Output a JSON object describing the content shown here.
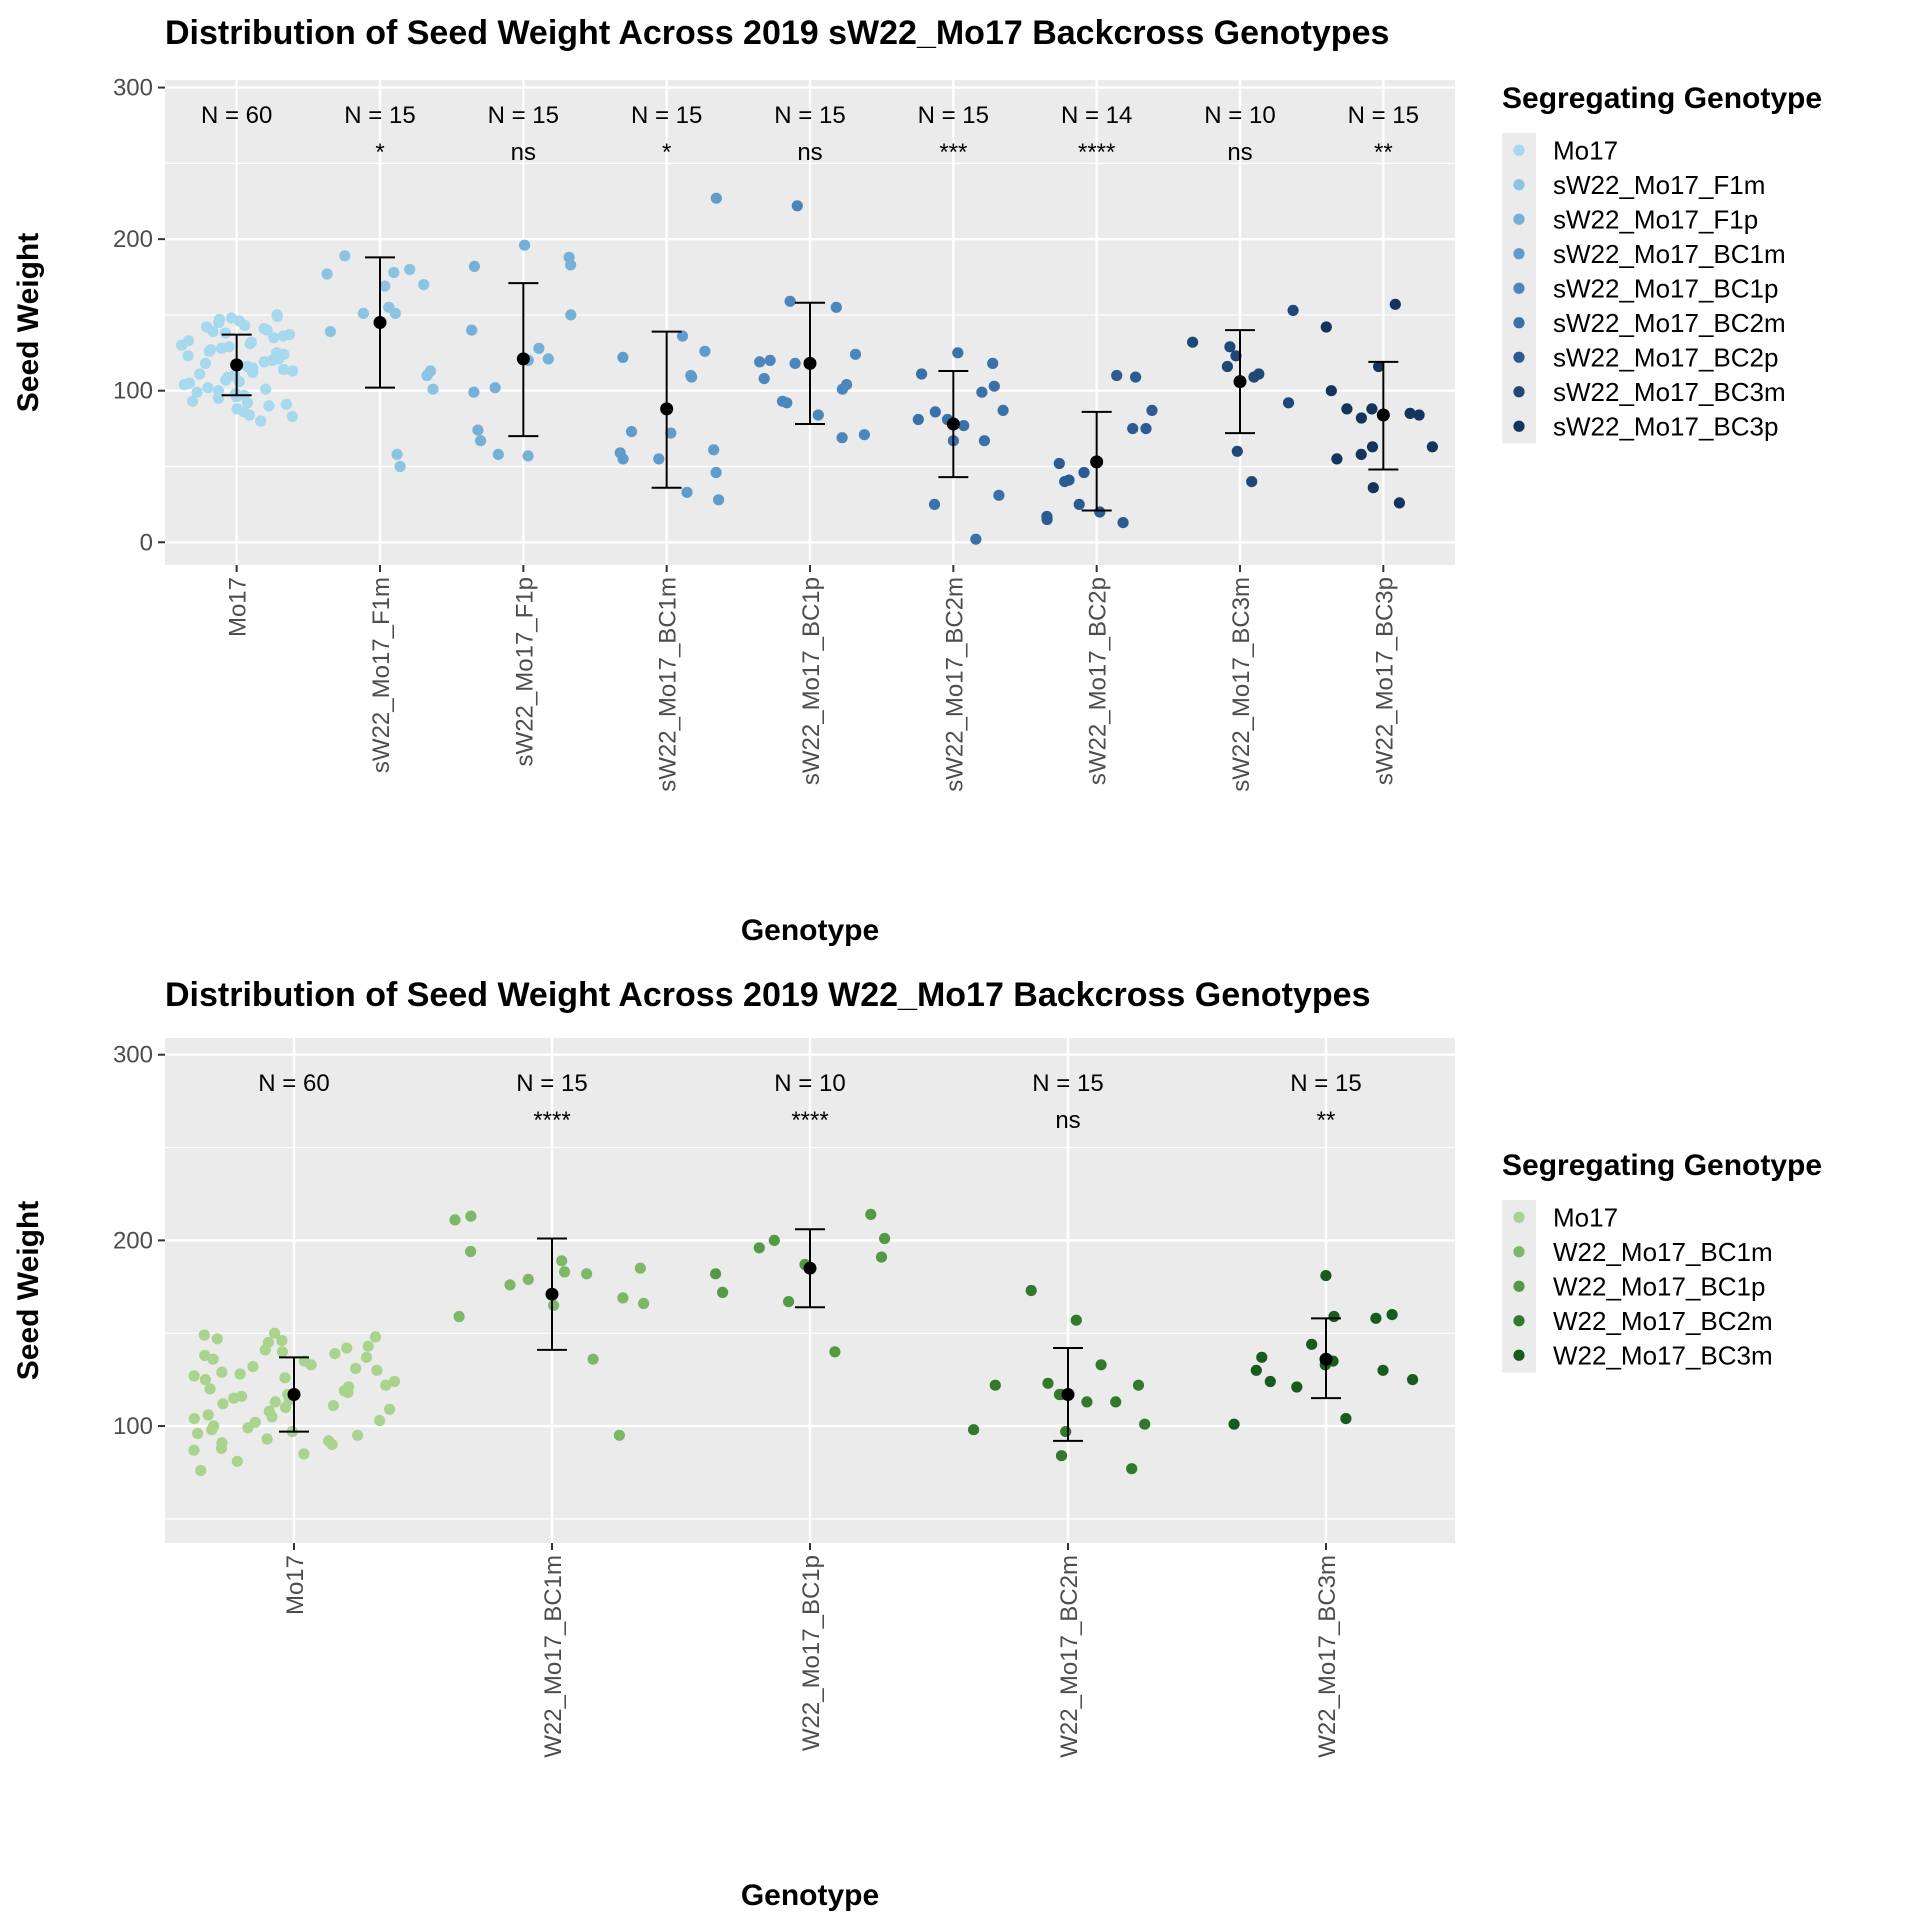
{
  "chart_data": [
    {
      "type": "scatter",
      "title": "Distribution of Seed Weight Across 2019 sW22_Mo17 Backcross Genotypes",
      "xlabel": "Genotype",
      "ylabel": "Seed Weight",
      "ylim": [
        -15,
        305
      ],
      "yticks": [
        0,
        100,
        200,
        300
      ],
      "grid": true,
      "legend_title": "Segregating Genotype",
      "legend_position": "right",
      "categories": [
        "Mo17",
        "sW22_Mo17_F1m",
        "sW22_Mo17_F1p",
        "sW22_Mo17_BC1m",
        "sW22_Mo17_BC1p",
        "sW22_Mo17_BC2m",
        "sW22_Mo17_BC2p",
        "sW22_Mo17_BC3m",
        "sW22_Mo17_BC3p"
      ],
      "colors": [
        "#a6d8ee",
        "#8bc4e3",
        "#75b0d8",
        "#5f9ccb",
        "#4b87bc",
        "#3a71a8",
        "#2b5c91",
        "#1e4878",
        "#13355d"
      ],
      "n_labels": [
        "N = 60",
        "N = 15",
        "N = 15",
        "N = 15",
        "N = 15",
        "N = 15",
        "N = 14",
        "N = 10",
        "N = 15"
      ],
      "significance": [
        "",
        "*",
        "ns",
        "*",
        "ns",
        "***",
        "****",
        "ns",
        "**"
      ],
      "means": [
        117,
        145,
        121,
        88,
        118,
        78,
        53,
        106,
        84
      ],
      "error_low": [
        97,
        102,
        70,
        36,
        78,
        43,
        21,
        72,
        48
      ],
      "error_high": [
        137,
        188,
        171,
        139,
        158,
        113,
        86,
        140,
        119
      ],
      "points": [
        [
          119,
          97,
          148,
          127,
          135,
          101,
          88,
          146,
          106,
          130,
          116,
          84,
          138,
          125,
          95,
          109,
          142,
          113,
          80,
          121,
          150,
          104,
          132,
          91,
          118,
          140,
          99,
          124,
          111,
          145,
          86,
          128,
          107,
          143,
          93,
          115,
          137,
          102,
          126,
          90,
          149,
          112,
          133,
          96,
          120,
          141,
          105,
          129,
          83,
          136,
          110,
          147,
          98,
          123,
          114,
          139,
          100,
          131,
          92,
          117
        ],
        [
          177,
          151,
          170,
          189,
          110,
          58,
          180,
          139,
          50,
          113,
          155,
          169,
          151,
          178,
          101
        ],
        [
          196,
          183,
          121,
          74,
          58,
          188,
          128,
          150,
          182,
          67,
          99,
          140,
          102,
          57,
          120
        ],
        [
          227,
          109,
          72,
          55,
          126,
          33,
          59,
          28,
          46,
          136,
          122,
          73,
          55,
          110,
          61
        ],
        [
          222,
          155,
          92,
          119,
          104,
          71,
          84,
          159,
          101,
          118,
          69,
          108,
          124,
          93,
          120
        ],
        [
          118,
          81,
          25,
          87,
          111,
          2,
          77,
          67,
          31,
          103,
          125,
          99,
          86,
          67,
          81
        ],
        [
          110,
          109,
          41,
          87,
          17,
          75,
          15,
          52,
          13,
          25,
          46,
          75,
          40,
          20
        ],
        [
          153,
          60,
          132,
          111,
          129,
          116,
          109,
          40,
          92,
          123
        ],
        [
          157,
          142,
          100,
          88,
          116,
          84,
          26,
          55,
          63,
          36,
          58,
          63,
          88,
          85,
          82
        ]
      ]
    },
    {
      "type": "scatter",
      "title": "Distribution of Seed Weight Across 2019 W22_Mo17 Backcross Genotypes",
      "xlabel": "Genotype",
      "ylabel": "Seed Weight",
      "ylim": [
        37,
        309
      ],
      "yticks": [
        100,
        200,
        300
      ],
      "grid": true,
      "legend_title": "Segregating Genotype",
      "legend_position": "right",
      "categories": [
        "Mo17",
        "W22_Mo17_BC1m",
        "W22_Mo17_BC1p",
        "W22_Mo17_BC2m",
        "W22_Mo17_BC3m"
      ],
      "colors": [
        "#a8d48e",
        "#7cb866",
        "#539a45",
        "#317a2c",
        "#165c1d"
      ],
      "n_labels": [
        "N = 60",
        "N = 15",
        "N = 10",
        "N = 15",
        "N = 15"
      ],
      "significance": [
        "",
        "****",
        "****",
        "ns",
        "**"
      ],
      "means": [
        117,
        171,
        185,
        117,
        136
      ],
      "error_low": [
        97,
        141,
        164,
        92,
        115
      ],
      "error_high": [
        137,
        201,
        206,
        142,
        158
      ],
      "points": [
        [
          124,
          98,
          140,
          131,
          150,
          102,
          88,
          145,
          110,
          127,
          115,
          85,
          137,
          121,
          96,
          106,
          142,
          114,
          81,
          120,
          149,
          104,
          133,
          91,
          118,
          139,
          99,
          125,
          111,
          146,
          87,
          129,
          108,
          143,
          93,
          116,
          136,
          103,
          126,
          90,
          148,
          112,
          132,
          95,
          119,
          141,
          105,
          128,
          76,
          135,
          109,
          147,
          97,
          122,
          113,
          138,
          100,
          130,
          92,
          117
        ],
        [
          194,
          166,
          176,
          159,
          136,
          95,
          211,
          189,
          169,
          183,
          213,
          179,
          165,
          185,
          182
        ],
        [
          214,
          140,
          167,
          196,
          191,
          201,
          187,
          172,
          182,
          200
        ],
        [
          173,
          157,
          133,
          122,
          101,
          84,
          117,
          113,
          97,
          123,
          117,
          98,
          77,
          113,
          122
        ],
        [
          181,
          160,
          159,
          144,
          137,
          125,
          130,
          121,
          135,
          101,
          104,
          130,
          158,
          133,
          124
        ]
      ]
    }
  ]
}
